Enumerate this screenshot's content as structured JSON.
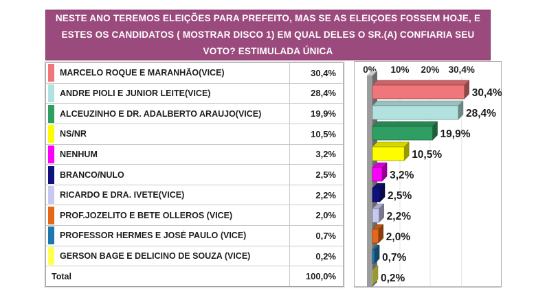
{
  "header": {
    "lines": [
      "NESTE ANO TEREMOS ELEIÇÕES PARA PREFEITO, MAS SE AS ELEIÇOES FOSSEM HOJE, E",
      "ESTES OS CANDIDATOS ( MOSTRAR DISCO 1) EM QUAL DELES O SR.(A) CONFIARIA SEU",
      "VOTO? ESTIMULADA ÚNICA"
    ]
  },
  "colors": {
    "header_bg": "#9b4a7d",
    "header_border": "#7e3264",
    "header_text": "#ffffff",
    "text_dark": "#1c1c1c",
    "row_divider": "#c9c9c9",
    "plot_border": "#b3a6ae",
    "grid_line": "#e3e3e3",
    "axis_line": "#a6a6a6",
    "wall_front": "#9c9c9c",
    "wall_top": "#c8c8c8",
    "wall_side": "#6a6a6a"
  },
  "chart_data": {
    "type": "bar",
    "orientation": "horizontal",
    "style": "3d",
    "title": "NESTE ANO TEREMOS ELEIÇÕES PARA PREFEITO, MAS SE AS ELEIÇOES FOSSEM HOJE, E ESTES OS CANDIDATOS ( MOSTRAR DISCO 1) EM QUAL DELES O SR.(A) CONFIARIA SEU VOTO? ESTIMULADA ÚNICA",
    "categories": [
      "MARCELO ROQUE E MARANHÃO(VICE)",
      "ANDRE PIOLI E JUNIOR LEITE(VICE)",
      "ALCEUZINHO E DR. ADALBERTO ARAUJO(VICE)",
      "NS/NR",
      "NENHUM",
      "BRANCO/NULO",
      "RICARDO E DRA. IVETE(VICE)",
      "PROF.JOZELITO E BETE OLLEROS (VICE)",
      "PROFESSOR HERMES E JOSÉ PAULO (VICE)",
      "GERSON BAGE E DELICINO DE SOUZA (VICE)"
    ],
    "values": [
      30.4,
      28.4,
      19.9,
      10.5,
      3.2,
      2.5,
      2.2,
      2.0,
      0.7,
      0.2
    ],
    "value_labels": [
      "30,4%",
      "28,4%",
      "19,9%",
      "10,5%",
      "3,2%",
      "2,5%",
      "2,2%",
      "2,0%",
      "0,7%",
      "0,2%"
    ],
    "bar_colors": [
      "#ef767b",
      "#b2e2df",
      "#2f9e63",
      "#fdfd00",
      "#fb00fb",
      "#10107e",
      "#c8c8f0",
      "#e56717",
      "#1f78ad",
      "#ffff55"
    ],
    "x_ticks": [
      {
        "label": "0%",
        "value": 0
      },
      {
        "label": "10%",
        "value": 10
      },
      {
        "label": "20%",
        "value": 20
      },
      {
        "label": "30,4%",
        "value": 30.4
      }
    ],
    "xlim": [
      0,
      43
    ],
    "grid": true,
    "legend": "none",
    "total": {
      "label": "Total",
      "value_label": "100,0%",
      "value": 100.0
    }
  }
}
